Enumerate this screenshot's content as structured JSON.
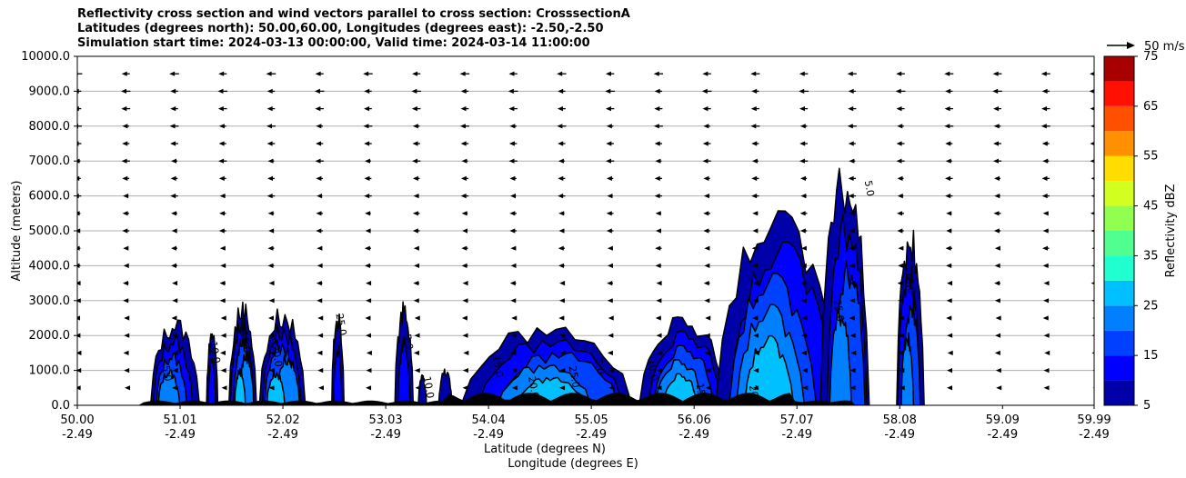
{
  "title_lines": [
    "Reflectivity cross section and wind vectors parallel to cross section: CrosssectionA",
    "Latitudes (degrees north): 50.00,60.00, Longitudes (degrees east): -2.50,-2.50",
    "Simulation start time: 2024-03-13 00:00:00, Valid time: 2024-03-14 11:00:00"
  ],
  "chart_data": {
    "type": "contourf",
    "xlabel_lat": "Latitude (degrees N)",
    "xlabel_lon": "Longitude (degrees E)",
    "ylabel": "Altitude (meters)",
    "xlim": [
      50.0,
      59.99
    ],
    "ylim": [
      0,
      10000
    ],
    "x_ticks": [
      {
        "lat": "50.00",
        "lon": "-2.49",
        "value": 50.0
      },
      {
        "lat": "51.01",
        "lon": "-2.49",
        "value": 51.01
      },
      {
        "lat": "52.02",
        "lon": "-2.49",
        "value": 52.02
      },
      {
        "lat": "53.03",
        "lon": "-2.49",
        "value": 53.03
      },
      {
        "lat": "54.04",
        "lon": "-2.49",
        "value": 54.04
      },
      {
        "lat": "55.05",
        "lon": "-2.49",
        "value": 55.05
      },
      {
        "lat": "56.06",
        "lon": "-2.49",
        "value": 56.06
      },
      {
        "lat": "57.07",
        "lon": "-2.49",
        "value": 57.07
      },
      {
        "lat": "58.08",
        "lon": "-2.49",
        "value": 58.08
      },
      {
        "lat": "59.09",
        "lon": "-2.49",
        "value": 59.09
      },
      {
        "lat": "59.99",
        "lon": "-2.49",
        "value": 59.99
      }
    ],
    "y_ticks": [
      "0.0",
      "1000.0",
      "2000.0",
      "3000.0",
      "4000.0",
      "5000.0",
      "6000.0",
      "7000.0",
      "8000.0",
      "9000.0",
      "10000.0"
    ],
    "grid": "horizontal",
    "colorbar": {
      "label": "Reflectivity dBZ",
      "levels": [
        5,
        10,
        15,
        20,
        25,
        30,
        35,
        40,
        45,
        50,
        55,
        60,
        65,
        70,
        75
      ],
      "tick_labels": [
        "5",
        "15",
        "25",
        "35",
        "45",
        "55",
        "65",
        "75"
      ],
      "colors": [
        "#0000a8",
        "#0000ff",
        "#0040ff",
        "#0080ff",
        "#00c0ff",
        "#20ffd0",
        "#50ff90",
        "#90ff50",
        "#d0ff20",
        "#ffdd00",
        "#ff9000",
        "#ff5000",
        "#ff1000",
        "#a80000"
      ]
    },
    "quiver_key": {
      "label": "50 m/s"
    },
    "contour_labels": [
      "5.0",
      "10.0",
      "15.0",
      "20.0",
      "25.0"
    ],
    "echo_cells": [
      {
        "lat": [
          50.72,
          51.2
        ],
        "top_m": 2600,
        "max_dbz": 22
      },
      {
        "lat": [
          51.27,
          51.38
        ],
        "top_m": 2300,
        "max_dbz": 12
      },
      {
        "lat": [
          51.49,
          51.76
        ],
        "top_m": 3100,
        "max_dbz": 25
      },
      {
        "lat": [
          51.79,
          52.24
        ],
        "top_m": 2900,
        "max_dbz": 25
      },
      {
        "lat": [
          52.5,
          52.62
        ],
        "top_m": 2800,
        "max_dbz": 10
      },
      {
        "lat": [
          53.12,
          53.3
        ],
        "top_m": 3000,
        "max_dbz": 12
      },
      {
        "lat": [
          53.35,
          53.43
        ],
        "top_m": 900,
        "max_dbz": 8
      },
      {
        "lat": [
          53.55,
          53.68
        ],
        "top_m": 1100,
        "max_dbz": 8
      },
      {
        "lat": [
          53.77,
          55.45
        ],
        "top_m": 2400,
        "max_dbz": 25
      },
      {
        "lat": [
          55.52,
          56.37
        ],
        "top_m": 2800,
        "max_dbz": 25
      },
      {
        "lat": [
          56.27,
          57.5
        ],
        "top_m": 5800,
        "max_dbz": 25
      },
      {
        "lat": [
          57.3,
          57.78
        ],
        "top_m": 7100,
        "max_dbz": 22
      },
      {
        "lat": [
          58.05,
          58.32
        ],
        "top_m": 5400,
        "max_dbz": 20
      }
    ],
    "wind": {
      "direction": "northward_negative",
      "note": "vectors point toward decreasing latitude, longer aloft"
    }
  }
}
